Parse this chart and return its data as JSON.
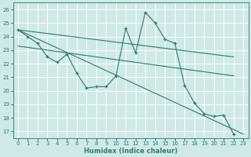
{
  "xlabel": "Humidex (Indice chaleur)",
  "xlim": [
    -0.5,
    23.5
  ],
  "ylim": [
    16.5,
    26.5
  ],
  "yticks": [
    17,
    18,
    19,
    20,
    21,
    22,
    23,
    24,
    25,
    26
  ],
  "xticks": [
    0,
    1,
    2,
    3,
    4,
    5,
    6,
    7,
    8,
    9,
    10,
    11,
    12,
    13,
    14,
    15,
    16,
    17,
    18,
    19,
    20,
    21,
    22,
    23
  ],
  "bg_color": "#cfe9e9",
  "line_color": "#2d7a6e",
  "grid_color": "#ffffff",
  "series": {
    "main": {
      "x": [
        0,
        1,
        2,
        3,
        4,
        5,
        6,
        7,
        8,
        9,
        10,
        11,
        12,
        13,
        14,
        15,
        16,
        17,
        18,
        19,
        20,
        21,
        22
      ],
      "y": [
        24.5,
        24.0,
        23.5,
        22.5,
        22.1,
        22.7,
        21.3,
        20.2,
        20.3,
        20.3,
        21.1,
        24.6,
        22.8,
        25.8,
        25.0,
        23.8,
        23.5,
        20.4,
        19.1,
        18.3,
        18.1,
        18.2,
        16.8
      ]
    },
    "trend1": {
      "x": [
        0,
        22
      ],
      "y": [
        24.5,
        22.5
      ]
    },
    "trend2": {
      "x": [
        0,
        23
      ],
      "y": [
        24.5,
        16.8
      ]
    },
    "trend3": {
      "x": [
        0,
        22
      ],
      "y": [
        23.3,
        21.1
      ]
    }
  }
}
